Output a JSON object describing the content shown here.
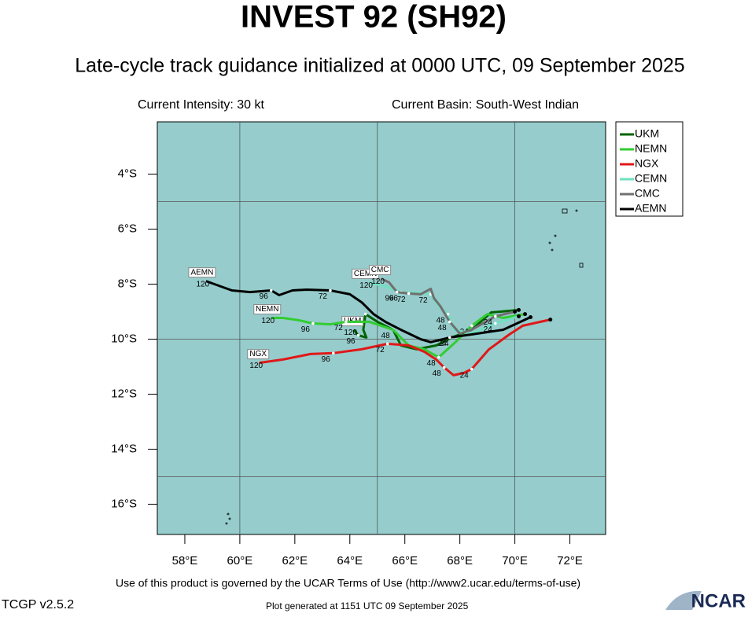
{
  "chart_data": {
    "type": "line",
    "title": "INVEST 92 (SH92)",
    "subtitle": "Late-cycle track guidance initialized at 0000 UTC, 09 September 2025",
    "info_left": "Current Intensity: 30 kt",
    "info_right": "Current Basin: South-West Indian",
    "footer": "Use of this product is governed by the UCAR Terms of Use (http://www2.ucar.edu/terms-of-use)",
    "version": "TCGP v2.5.2",
    "generated": "Plot generated at 1151 UTC   09 September 2025",
    "logo": "NCAR",
    "xlim": [
      57,
      73.3
    ],
    "ylim": [
      -17.1,
      -2.1
    ],
    "xticks": [
      {
        "value": 58,
        "label": "58°E"
      },
      {
        "value": 60,
        "label": "60°E"
      },
      {
        "value": 62,
        "label": "62°E"
      },
      {
        "value": 64,
        "label": "64°E"
      },
      {
        "value": 66,
        "label": "66°E"
      },
      {
        "value": 68,
        "label": "68°E"
      },
      {
        "value": 70,
        "label": "70°E"
      },
      {
        "value": 72,
        "label": "72°E"
      }
    ],
    "yticks": [
      {
        "value": -4,
        "label": "4°S"
      },
      {
        "value": -6,
        "label": "6°S"
      },
      {
        "value": -8,
        "label": "8°S"
      },
      {
        "value": -10,
        "label": "10°S"
      },
      {
        "value": -12,
        "label": "12°S"
      },
      {
        "value": -14,
        "label": "14°S"
      },
      {
        "value": -16,
        "label": "16°S"
      }
    ],
    "grid": {
      "lon": [
        60,
        65,
        70
      ],
      "lat": [
        -5,
        -10,
        -15
      ]
    },
    "series": [
      {
        "name": "UKM",
        "color": "#006400",
        "x": [
          70.14,
          69.14,
          68.43,
          67.71,
          67.14,
          66.43,
          65.86,
          65.57,
          65.0,
          64.57,
          64.49,
          64.6,
          64.31,
          64.14
        ],
        "values": [
          -8.94,
          -9.03,
          -9.66,
          -9.94,
          -10.23,
          -10.37,
          -10.23,
          -9.66,
          -9.37,
          -9.09,
          -9.66,
          -9.94,
          -9.86,
          -9.66
        ],
        "tau_labels": [
          null,
          null,
          null,
          "24",
          null,
          null,
          null,
          "48",
          null,
          "72",
          null,
          null,
          "96",
          "120"
        ]
      },
      {
        "name": "NEMN",
        "color": "#33cc33",
        "x": [
          70.37,
          69.57,
          69.0,
          68.43,
          67.86,
          67.23,
          66.71,
          66.14,
          65.57,
          64.71,
          63.86,
          63.29,
          62.66,
          62.14,
          61.57,
          61.14
        ],
        "values": [
          -9.09,
          -9.23,
          -9.09,
          -9.51,
          -10.09,
          -10.66,
          -10.37,
          -10.23,
          -9.66,
          -9.37,
          -9.37,
          -9.46,
          -9.43,
          -9.31,
          -9.23,
          -9.23
        ],
        "tau_labels": [
          null,
          null,
          null,
          "24",
          null,
          "48",
          null,
          null,
          null,
          null,
          "72",
          null,
          "96",
          null,
          null,
          "120"
        ]
      },
      {
        "name": "NGX",
        "color": "#e01818",
        "x": [
          71.29,
          70.29,
          69.8,
          69.06,
          68.43,
          68.14,
          67.77,
          67.43,
          67.14,
          66.71,
          66.14,
          65.37,
          64.43,
          63.4,
          62.57,
          61.57,
          60.71
        ],
        "values": [
          -9.29,
          -9.51,
          -9.83,
          -10.37,
          -11.09,
          -11.23,
          -11.31,
          -11.03,
          -10.74,
          -10.46,
          -10.23,
          -10.17,
          -10.37,
          -10.51,
          -10.54,
          -10.74,
          -10.86
        ],
        "tau_labels": [
          null,
          null,
          null,
          null,
          "24",
          null,
          null,
          "48",
          null,
          null,
          null,
          "72",
          null,
          "96",
          null,
          null,
          "120"
        ]
      },
      {
        "name": "CEMN",
        "color": "#70e0c0",
        "x": [
          70.14,
          69.29,
          68.43,
          67.8,
          67.57,
          67.23,
          66.94,
          66.43,
          65.86,
          65.29,
          64.71
        ],
        "values": [
          -9.17,
          -9.43,
          -9.8,
          -9.66,
          -9.09,
          -8.8,
          -8.37,
          -8.31,
          -8.29,
          -8.09,
          -7.94
        ],
        "tau_labels": [
          null,
          "24",
          null,
          null,
          "48",
          null,
          "72",
          null,
          "96",
          null,
          "120"
        ]
      },
      {
        "name": "CMC",
        "color": "#707070",
        "x": [
          70.0,
          69.29,
          68.43,
          68.0,
          67.63,
          67.29,
          67.06,
          66.94,
          66.57,
          66.14,
          65.71,
          65.43,
          65.14
        ],
        "values": [
          -9.0,
          -9.17,
          -9.66,
          -9.8,
          -9.37,
          -8.8,
          -8.51,
          -8.17,
          -8.37,
          -8.34,
          -8.29,
          -7.94,
          -7.8
        ],
        "tau_labels": [
          null,
          "24",
          null,
          null,
          "48",
          null,
          null,
          null,
          null,
          "72",
          "96",
          null,
          "120"
        ]
      },
      {
        "name": "AEMN",
        "color": "#000000",
        "x": [
          70.57,
          69.57,
          68.43,
          67.63,
          66.94,
          66.57,
          65.86,
          65.29,
          64.86,
          64.43,
          64.0,
          63.29,
          62.43,
          61.91,
          61.43,
          61.14,
          60.37,
          59.71,
          58.77
        ],
        "values": [
          -9.2,
          -9.66,
          -9.83,
          -9.94,
          -10.11,
          -10.0,
          -9.66,
          -9.37,
          -9.09,
          -8.66,
          -8.37,
          -8.23,
          -8.2,
          -8.23,
          -8.4,
          -8.23,
          -8.29,
          -8.23,
          -7.89
        ],
        "tau_labels": [
          null,
          null,
          null,
          "24",
          null,
          null,
          null,
          null,
          null,
          null,
          null,
          "72",
          null,
          null,
          null,
          "96",
          null,
          null,
          "120"
        ]
      }
    ]
  }
}
